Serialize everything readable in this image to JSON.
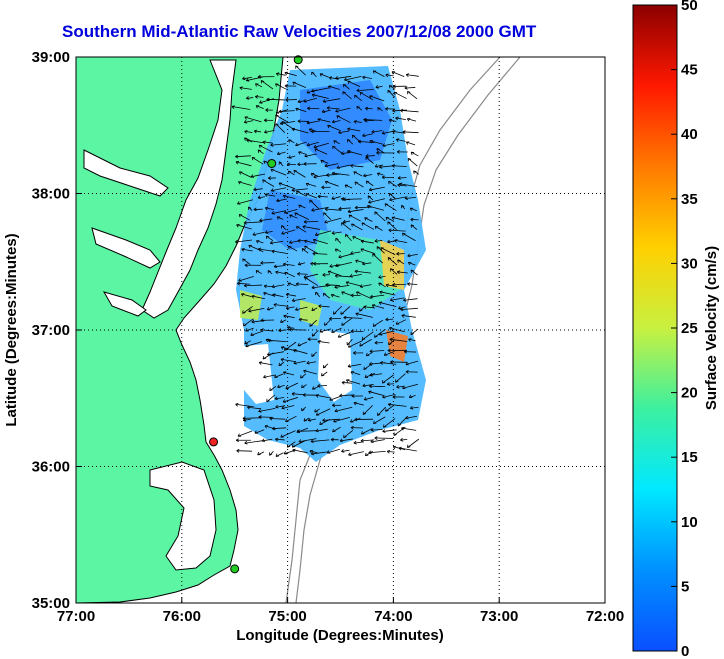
{
  "chart_data": {
    "type": "heatmap",
    "title": "Southern Mid-Atlantic Raw Velocities 2007/12/08 2000 GMT",
    "xlabel": "Longitude (Degrees:Minutes)",
    "ylabel": "Latitude (Degrees:Minutes)",
    "x_tick_labels": [
      "77:00",
      "76:00",
      "75:00",
      "74:00",
      "73:00",
      "72:00"
    ],
    "x_tick_values": [
      -77,
      -76,
      -75,
      -74,
      -73,
      -72
    ],
    "y_tick_labels": [
      "35:00",
      "36:00",
      "37:00",
      "38:00",
      "39:00"
    ],
    "y_tick_values": [
      35,
      36,
      37,
      38,
      39
    ],
    "xlim": [
      -77,
      -72
    ],
    "ylim": [
      35,
      39
    ],
    "grid": true,
    "colorbar": {
      "label": "Surface Velocity (cm/s)",
      "range": [
        0,
        50
      ],
      "tick_labels": [
        "0",
        "5",
        "10",
        "15",
        "20",
        "25",
        "30",
        "35",
        "40",
        "45",
        "50"
      ],
      "tick_values": [
        0,
        5,
        10,
        15,
        20,
        25,
        30,
        35,
        40,
        45,
        50
      ],
      "colormap": "jet"
    },
    "stations": [
      {
        "name": "",
        "lon": -74.9,
        "lat": 38.98,
        "color": "#22cc22"
      },
      {
        "name": "",
        "lon": -75.15,
        "lat": 38.22,
        "color": "#22cc22"
      },
      {
        "name": "",
        "lon": -75.7,
        "lat": 36.18,
        "color": "#ee2222"
      },
      {
        "name": "",
        "lon": -75.5,
        "lat": 35.25,
        "color": "#22cc22"
      }
    ],
    "velocity_field_notes": "dense raw current vectors over the shelf, speeds mostly 5-20 cm/s with a localized max near 74:00W 37:00N"
  },
  "colors": {
    "title": "#0000dd",
    "land": "#5cf5a4",
    "coast": "#000000",
    "bathymetry": "#8a8a8a"
  }
}
